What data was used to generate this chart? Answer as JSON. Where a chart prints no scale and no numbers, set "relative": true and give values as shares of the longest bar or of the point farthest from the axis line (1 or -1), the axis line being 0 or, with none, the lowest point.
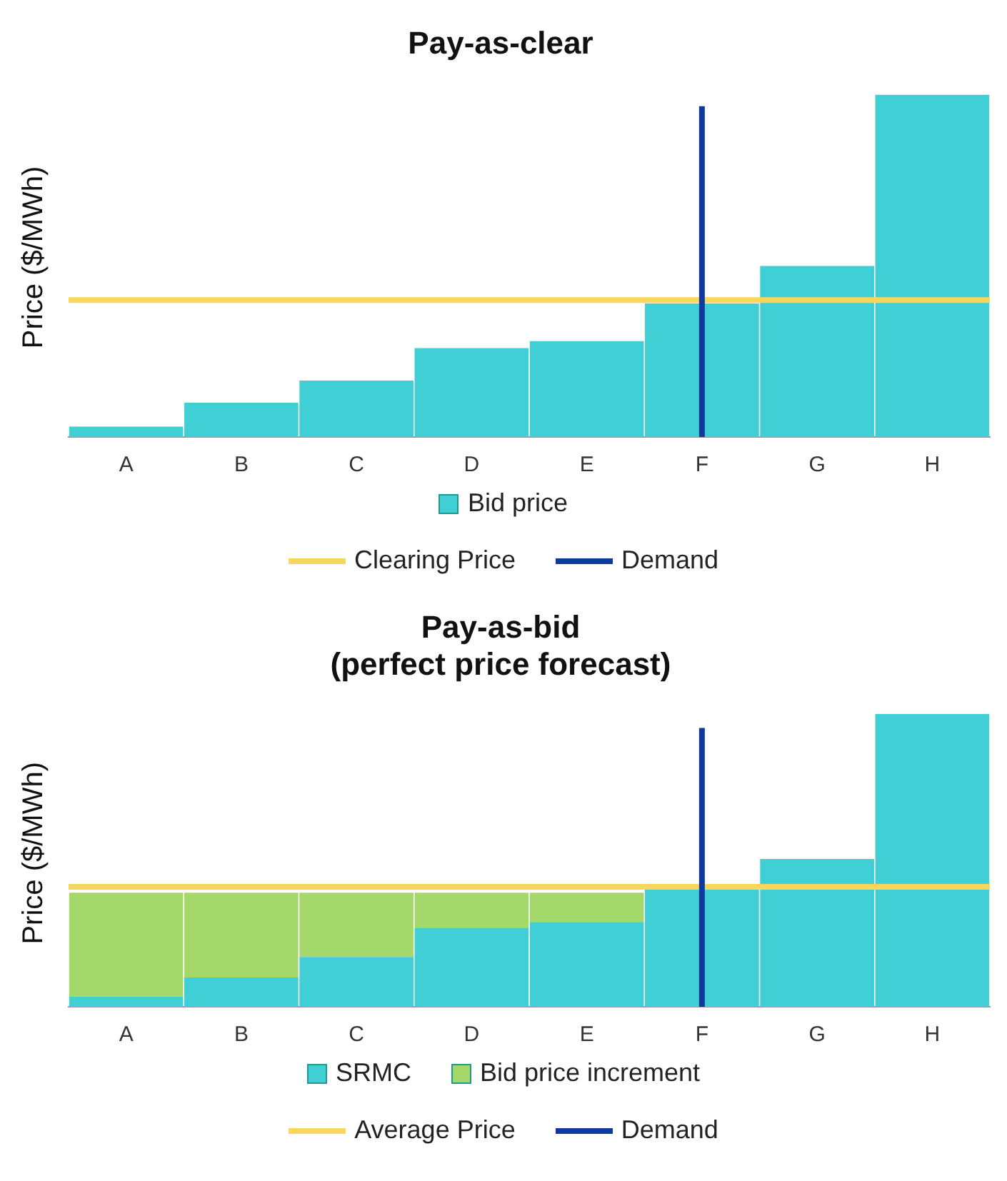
{
  "chart_data": [
    {
      "type": "bar",
      "title": "Pay-as-clear",
      "ylabel": "Price ($/MWh)",
      "relative": true,
      "categories": [
        "A",
        "B",
        "C",
        "D",
        "E",
        "F",
        "G",
        "H"
      ],
      "series": [
        {
          "name": "Bid price",
          "color": "#40cfd4",
          "values": [
            0.03,
            0.1,
            0.165,
            0.26,
            0.28,
            0.39,
            0.5,
            1.0
          ]
        }
      ],
      "ref_lines": [
        {
          "axis": "y",
          "value": 0.4,
          "label": "Clearing Price",
          "color": "#f9d65c"
        },
        {
          "axis": "x",
          "value": "F",
          "label": "Demand",
          "color": "#0d3a9c"
        }
      ],
      "legend": "bottom",
      "grid": false
    },
    {
      "type": "bar",
      "title": "Pay-as-bid\n(perfect price forecast)",
      "ylabel": "Price ($/MWh)",
      "relative": true,
      "stacked": true,
      "categories": [
        "A",
        "B",
        "C",
        "D",
        "E",
        "F",
        "G",
        "H"
      ],
      "series": [
        {
          "name": "SRMC",
          "color": "#40cfd4",
          "values": [
            0.035,
            0.1,
            0.17,
            0.27,
            0.29,
            0.405,
            0.505,
            1.0
          ]
        },
        {
          "name": "Bid price increment",
          "color": "#a5d86a",
          "values": [
            0.355,
            0.29,
            0.22,
            0.12,
            0.1,
            null,
            null,
            null
          ]
        }
      ],
      "ref_lines": [
        {
          "axis": "y",
          "value": 0.41,
          "label": "Average Price",
          "color": "#f9d65c"
        },
        {
          "axis": "x",
          "value": "F",
          "label": "Demand",
          "color": "#0d3a9c"
        }
      ],
      "legend": "bottom",
      "grid": false
    }
  ]
}
